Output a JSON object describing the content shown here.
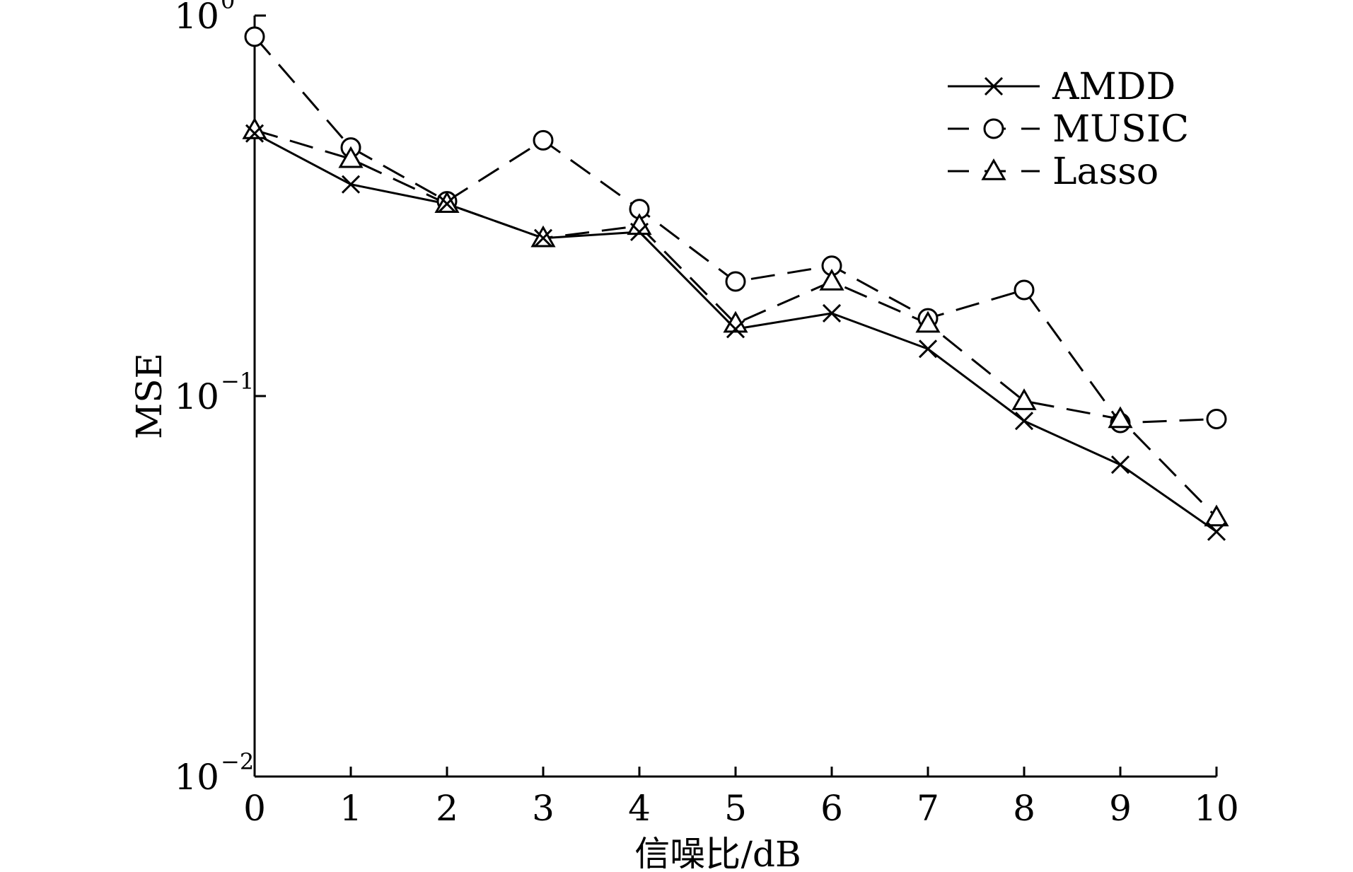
{
  "chart_data": {
    "type": "line",
    "title": "",
    "xlabel": "信噪比/dB",
    "ylabel": "MSE",
    "x_scale": "linear",
    "y_scale": "log",
    "xlim": [
      0,
      10
    ],
    "ylim": [
      0.01,
      1
    ],
    "x_ticks": [
      "0",
      "1",
      "2",
      "3",
      "4",
      "5",
      "6",
      "7",
      "8",
      "9",
      "10"
    ],
    "y_ticks": [
      {
        "value": 1,
        "base": "10",
        "exp": "0"
      },
      {
        "value": 0.1,
        "base": "10",
        "exp": "−1"
      },
      {
        "value": 0.01,
        "base": "10",
        "exp": "−2"
      }
    ],
    "grid": false,
    "legend_position": "top-right",
    "x": [
      0,
      1,
      2,
      3,
      4,
      5,
      6,
      7,
      8,
      9,
      10
    ],
    "series": [
      {
        "name": "AMDD",
        "marker": "x",
        "line_style": "solid",
        "color": "#000000",
        "values": [
          0.49,
          0.36,
          0.32,
          0.26,
          0.27,
          0.15,
          0.165,
          0.133,
          0.086,
          0.066,
          0.044
        ]
      },
      {
        "name": "MUSIC",
        "marker": "circle",
        "line_style": "dashed",
        "color": "#000000",
        "values": [
          0.88,
          0.45,
          0.325,
          0.47,
          0.31,
          0.2,
          0.22,
          0.16,
          0.19,
          0.085,
          0.087
        ]
      },
      {
        "name": "Lasso",
        "marker": "triangle",
        "line_style": "dashed",
        "color": "#000000",
        "values": [
          0.5,
          0.42,
          0.32,
          0.26,
          0.28,
          0.155,
          0.2,
          0.155,
          0.097,
          0.087,
          0.048
        ]
      }
    ]
  }
}
